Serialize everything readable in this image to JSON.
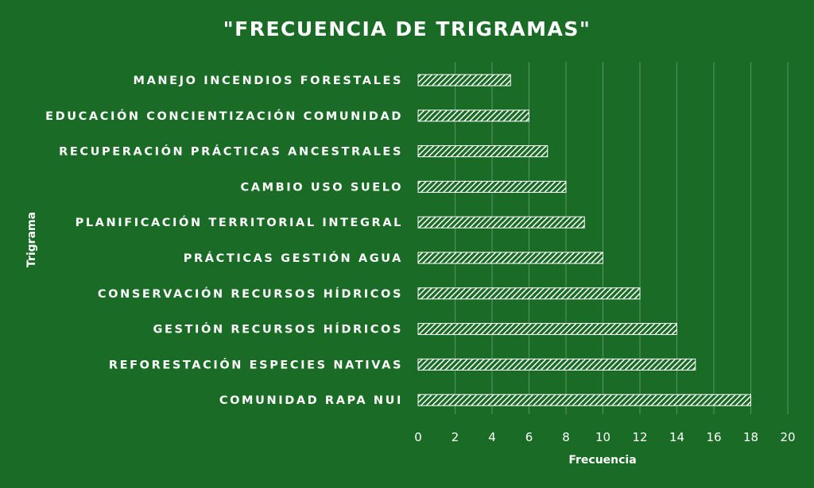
{
  "chart_data": {
    "type": "bar",
    "orientation": "horizontal",
    "title": "\"FRECUENCIA DE TRIGRAMAS\"",
    "xlabel": "Frecuencia",
    "ylabel": "Trigrama",
    "xlim": [
      0,
      20
    ],
    "xticks": [
      0,
      2,
      4,
      6,
      8,
      10,
      12,
      14,
      16,
      18,
      20
    ],
    "grid": true,
    "legend": "none",
    "categories": [
      "MANEJO INCENDIOS FORESTALES",
      "EDUCACIÓN CONCIENTIZACIÓN COMUNIDAD",
      "RECUPERACIÓN PRÁCTICAS ANCESTRALES",
      "CAMBIO USO SUELO",
      "PLANIFICACIÓN TERRITORIAL INTEGRAL",
      "PRÁCTICAS GESTIÓN AGUA",
      "CONSERVACIÓN RECURSOS HÍDRICOS",
      "GESTIÓN RECURSOS HÍDRICOS",
      "REFORESTACIÓN ESPECIES NATIVAS",
      "COMUNIDAD RAPA NUI"
    ],
    "values": [
      5,
      6,
      7,
      8,
      9,
      10,
      12,
      14,
      15,
      18
    ],
    "colors": {
      "background": "#1a6b26",
      "bar_pattern": "#ffffff",
      "text": "#ffffff"
    }
  }
}
